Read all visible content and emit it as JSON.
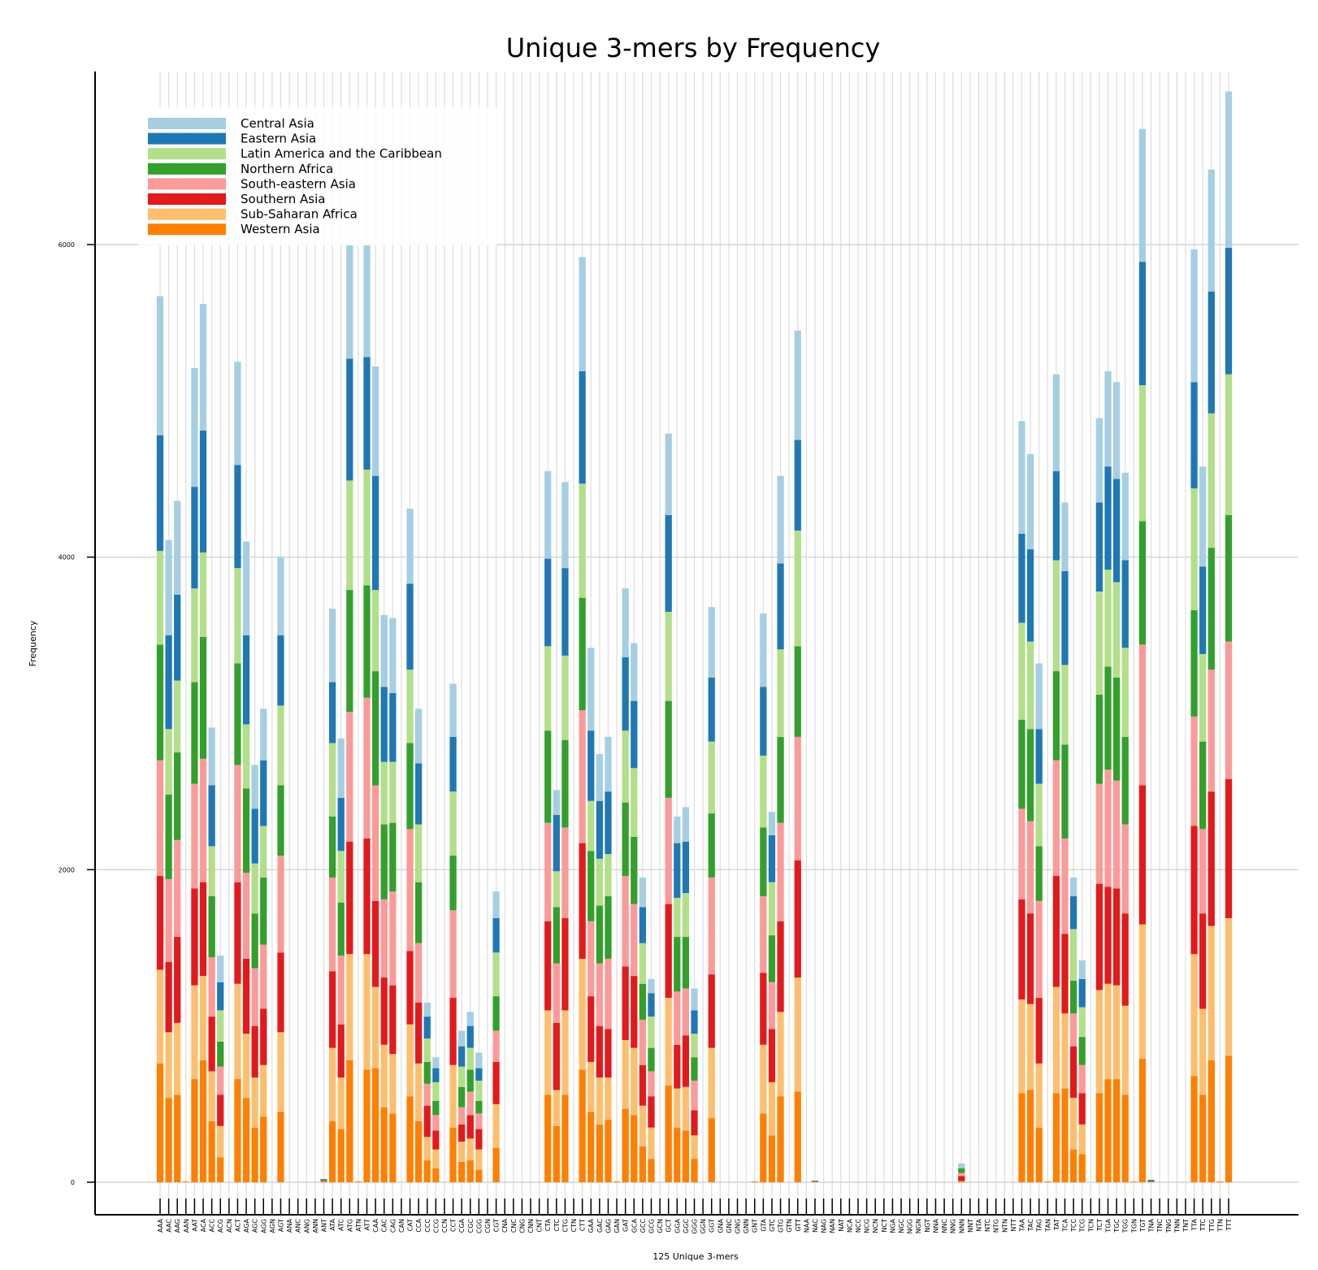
{
  "chart_data": {
    "type": "bar",
    "stacked": true,
    "title": "Unique 3-mers by Frequency",
    "xlabel": "125 Unique 3-mers",
    "ylabel": "Frequency",
    "yticks": [
      0,
      2000,
      4000,
      6000
    ],
    "ylim": [
      -200,
      7400
    ],
    "grid": true,
    "legend_position": "top-left",
    "colors": {
      "Central Asia": "#a6cee3",
      "Eastern Asia": "#1f78b4",
      "Latin America and the Caribbean": "#b2df8a",
      "Northern Africa": "#33a02c",
      "South-eastern Asia": "#fb9a99",
      "Southern Asia": "#e31a1c",
      "Sub-Saharan Africa": "#fdbf6f",
      "Western Asia": "#ff7f00"
    },
    "legend": [
      "Central Asia",
      "Eastern Asia",
      "Latin America and the Caribbean",
      "Northern Africa",
      "South-eastern Asia",
      "Southern Asia",
      "Sub-Saharan Africa",
      "Western Asia"
    ],
    "stack_order": [
      "Western Asia",
      "Sub-Saharan Africa",
      "Southern Asia",
      "South-eastern Asia",
      "Northern Africa",
      "Latin America and the Caribbean",
      "Eastern Asia",
      "Central Asia"
    ],
    "categories": [
      "AAA",
      "AAC",
      "AAG",
      "AAN",
      "AAT",
      "ACA",
      "ACC",
      "ACG",
      "ACN",
      "ACT",
      "AGA",
      "AGC",
      "AGG",
      "AGN",
      "AGT",
      "ANA",
      "ANC",
      "ANG",
      "ANN",
      "ANT",
      "ATA",
      "ATC",
      "ATG",
      "ATN",
      "ATT",
      "CAA",
      "CAC",
      "CAG",
      "CAN",
      "CAT",
      "CCA",
      "CCC",
      "CCG",
      "CCN",
      "CCT",
      "CGA",
      "CGC",
      "CGG",
      "CGN",
      "CGT",
      "CNA",
      "CNC",
      "CNG",
      "CNN",
      "CNT",
      "CTA",
      "CTC",
      "CTG",
      "CTN",
      "CTT",
      "GAA",
      "GAC",
      "GAG",
      "GAN",
      "GAT",
      "GCA",
      "GCC",
      "GCG",
      "GCN",
      "GCT",
      "GGA",
      "GGC",
      "GGG",
      "GGN",
      "GGT",
      "GNA",
      "GNC",
      "GNG",
      "GNN",
      "GNT",
      "GTA",
      "GTC",
      "GTG",
      "GTN",
      "GTT",
      "NAA",
      "NAC",
      "NAG",
      "NAN",
      "NAT",
      "NCA",
      "NCC",
      "NCG",
      "NCN",
      "NCT",
      "NGA",
      "NGC",
      "NGG",
      "NGN",
      "NGT",
      "NNA",
      "NNC",
      "NNG",
      "NNN",
      "NNT",
      "NTA",
      "NTC",
      "NTG",
      "NTN",
      "NTT",
      "TAA",
      "TAC",
      "TAG",
      "TAN",
      "TAT",
      "TCA",
      "TCC",
      "TCG",
      "TCN",
      "TCT",
      "TGA",
      "TGC",
      "TGG",
      "TGN",
      "TGT",
      "TNA",
      "TNC",
      "TNG",
      "TNN",
      "TNT",
      "TTA",
      "TTC",
      "TTG",
      "TTN",
      "TTT"
    ],
    "series": [
      {
        "name": "Western Asia",
        "values": [
          760,
          540,
          560,
          5,
          660,
          780,
          390,
          160,
          0,
          660,
          540,
          350,
          420,
          0,
          450,
          0,
          0,
          0,
          0,
          10,
          390,
          340,
          780,
          5,
          720,
          730,
          480,
          440,
          0,
          550,
          390,
          140,
          90,
          0,
          350,
          130,
          140,
          80,
          0,
          220,
          0,
          0,
          0,
          0,
          0,
          560,
          360,
          560,
          0,
          720,
          450,
          370,
          400,
          5,
          470,
          430,
          230,
          150,
          0,
          620,
          350,
          330,
          150,
          0,
          410,
          0,
          0,
          0,
          0,
          5,
          440,
          300,
          550,
          0,
          580,
          0,
          5,
          0,
          0,
          0,
          0,
          0,
          0,
          0,
          0,
          0,
          0,
          0,
          0,
          0,
          0,
          0,
          0,
          10,
          0,
          0,
          0,
          0,
          0,
          0,
          570,
          590,
          350,
          5,
          570,
          600,
          210,
          180,
          0,
          570,
          660,
          660,
          560,
          5,
          790,
          5,
          0,
          0,
          0,
          0,
          680,
          560,
          780,
          5,
          810
        ]
      },
      {
        "name": "Sub-Saharan Africa",
        "values": [
          600,
          420,
          460,
          0,
          600,
          540,
          320,
          200,
          0,
          610,
          410,
          320,
          330,
          0,
          510,
          0,
          0,
          0,
          0,
          0,
          470,
          330,
          680,
          0,
          740,
          520,
          400,
          380,
          0,
          460,
          370,
          150,
          120,
          0,
          400,
          130,
          140,
          130,
          0,
          280,
          0,
          0,
          0,
          0,
          0,
          540,
          230,
          540,
          0,
          710,
          320,
          300,
          270,
          0,
          440,
          430,
          260,
          200,
          0,
          560,
          250,
          280,
          150,
          0,
          450,
          0,
          0,
          0,
          0,
          0,
          440,
          340,
          540,
          0,
          730,
          0,
          0,
          0,
          0,
          0,
          0,
          0,
          0,
          0,
          0,
          0,
          0,
          0,
          0,
          0,
          0,
          0,
          0,
          0,
          0,
          0,
          0,
          0,
          0,
          0,
          600,
          550,
          410,
          0,
          680,
          480,
          330,
          190,
          0,
          660,
          610,
          600,
          570,
          0,
          860,
          0,
          0,
          0,
          0,
          0,
          780,
          550,
          860,
          0,
          880
        ]
      },
      {
        "name": "Southern Asia",
        "values": [
          600,
          450,
          550,
          0,
          620,
          600,
          350,
          200,
          0,
          650,
          480,
          330,
          360,
          0,
          510,
          0,
          0,
          0,
          0,
          0,
          490,
          340,
          720,
          0,
          740,
          550,
          430,
          440,
          0,
          470,
          390,
          200,
          120,
          0,
          430,
          110,
          150,
          130,
          0,
          270,
          0,
          0,
          0,
          0,
          0,
          570,
          430,
          590,
          0,
          740,
          420,
          330,
          310,
          0,
          470,
          460,
          260,
          200,
          0,
          600,
          280,
          330,
          160,
          0,
          470,
          0,
          0,
          0,
          0,
          0,
          460,
          340,
          580,
          0,
          750,
          0,
          0,
          0,
          0,
          0,
          0,
          0,
          0,
          0,
          0,
          0,
          0,
          0,
          0,
          0,
          0,
          0,
          0,
          30,
          0,
          0,
          0,
          0,
          0,
          0,
          640,
          580,
          420,
          0,
          710,
          510,
          330,
          200,
          0,
          680,
          620,
          620,
          590,
          0,
          890,
          0,
          0,
          0,
          0,
          0,
          820,
          610,
          860,
          0,
          890
        ]
      },
      {
        "name": "South-eastern Asia",
        "values": [
          740,
          530,
          620,
          0,
          670,
          790,
          380,
          180,
          0,
          750,
          550,
          370,
          410,
          0,
          620,
          0,
          0,
          0,
          0,
          0,
          600,
          440,
          830,
          0,
          900,
          740,
          500,
          600,
          0,
          780,
          380,
          140,
          100,
          0,
          560,
          110,
          150,
          100,
          0,
          200,
          0,
          0,
          0,
          0,
          0,
          630,
          380,
          580,
          0,
          850,
          480,
          400,
          450,
          0,
          580,
          460,
          290,
          160,
          0,
          680,
          340,
          300,
          190,
          0,
          620,
          0,
          0,
          0,
          0,
          0,
          490,
          300,
          630,
          0,
          790,
          0,
          0,
          0,
          0,
          0,
          0,
          0,
          0,
          0,
          0,
          0,
          0,
          0,
          0,
          0,
          0,
          0,
          0,
          20,
          0,
          0,
          0,
          0,
          0,
          0,
          580,
          590,
          620,
          0,
          740,
          610,
          210,
          180,
          0,
          640,
          750,
          690,
          570,
          0,
          900,
          0,
          0,
          0,
          0,
          0,
          700,
          540,
          780,
          0,
          880
        ]
      },
      {
        "name": "Northern Africa",
        "values": [
          740,
          540,
          560,
          0,
          650,
          780,
          390,
          160,
          0,
          650,
          540,
          350,
          430,
          0,
          450,
          0,
          0,
          0,
          0,
          0,
          390,
          340,
          780,
          0,
          720,
          730,
          480,
          440,
          0,
          550,
          390,
          140,
          90,
          0,
          350,
          130,
          140,
          80,
          0,
          220,
          0,
          0,
          0,
          0,
          0,
          590,
          360,
          560,
          0,
          720,
          450,
          370,
          400,
          0,
          470,
          430,
          230,
          150,
          0,
          620,
          350,
          330,
          150,
          0,
          410,
          0,
          0,
          0,
          0,
          0,
          440,
          300,
          550,
          0,
          580,
          0,
          0,
          0,
          0,
          0,
          0,
          0,
          0,
          0,
          0,
          0,
          0,
          0,
          0,
          0,
          0,
          0,
          0,
          30,
          0,
          0,
          0,
          0,
          0,
          0,
          570,
          590,
          350,
          0,
          570,
          600,
          210,
          180,
          0,
          570,
          660,
          660,
          560,
          0,
          790,
          0,
          0,
          0,
          0,
          0,
          680,
          560,
          780,
          0,
          810
        ]
      },
      {
        "name": "Latin America and the Caribbean",
        "values": [
          600,
          420,
          460,
          0,
          600,
          540,
          320,
          200,
          0,
          610,
          410,
          320,
          330,
          0,
          510,
          0,
          0,
          0,
          0,
          0,
          470,
          330,
          700,
          0,
          740,
          520,
          400,
          390,
          0,
          470,
          370,
          150,
          120,
          0,
          410,
          130,
          140,
          130,
          0,
          280,
          0,
          0,
          0,
          0,
          0,
          540,
          230,
          540,
          0,
          730,
          320,
          300,
          270,
          0,
          460,
          440,
          260,
          200,
          0,
          570,
          250,
          280,
          150,
          0,
          460,
          0,
          0,
          0,
          0,
          0,
          460,
          340,
          560,
          0,
          740,
          0,
          0,
          0,
          0,
          0,
          0,
          0,
          0,
          0,
          0,
          0,
          0,
          0,
          0,
          0,
          0,
          0,
          0,
          0,
          0,
          0,
          0,
          0,
          0,
          0,
          620,
          560,
          400,
          0,
          710,
          510,
          330,
          190,
          0,
          660,
          620,
          610,
          570,
          0,
          870,
          0,
          0,
          0,
          0,
          0,
          780,
          560,
          860,
          0,
          900
        ]
      },
      {
        "name": "Eastern Asia",
        "values": [
          740,
          600,
          550,
          0,
          650,
          780,
          390,
          180,
          0,
          660,
          570,
          350,
          420,
          0,
          450,
          0,
          0,
          0,
          0,
          10,
          390,
          340,
          780,
          0,
          720,
          730,
          480,
          440,
          0,
          550,
          390,
          140,
          90,
          0,
          350,
          130,
          140,
          80,
          0,
          220,
          0,
          0,
          0,
          0,
          0,
          560,
          360,
          560,
          0,
          720,
          450,
          370,
          400,
          0,
          470,
          430,
          230,
          150,
          0,
          620,
          350,
          330,
          150,
          0,
          410,
          0,
          0,
          0,
          0,
          0,
          440,
          300,
          550,
          0,
          580,
          0,
          5,
          0,
          0,
          0,
          0,
          0,
          0,
          0,
          0,
          0,
          0,
          0,
          0,
          0,
          0,
          0,
          0,
          0,
          0,
          0,
          0,
          0,
          0,
          0,
          570,
          590,
          350,
          0,
          570,
          600,
          210,
          180,
          0,
          570,
          660,
          660,
          560,
          0,
          790,
          10,
          0,
          0,
          0,
          0,
          680,
          560,
          780,
          0,
          810
        ]
      },
      {
        "name": "Central Asia",
        "values": [
          890,
          610,
          600,
          0,
          760,
          810,
          370,
          170,
          0,
          660,
          600,
          280,
          330,
          0,
          500,
          0,
          0,
          0,
          0,
          0,
          470,
          380,
          730,
          0,
          730,
          700,
          460,
          480,
          0,
          480,
          350,
          90,
          70,
          0,
          340,
          100,
          90,
          100,
          0,
          170,
          0,
          0,
          0,
          0,
          0,
          560,
          160,
          550,
          0,
          730,
          530,
          300,
          350,
          0,
          440,
          370,
          190,
          90,
          0,
          520,
          170,
          220,
          140,
          0,
          450,
          0,
          0,
          0,
          0,
          0,
          470,
          150,
          560,
          0,
          700,
          0,
          0,
          0,
          0,
          0,
          0,
          0,
          0,
          0,
          0,
          0,
          0,
          0,
          0,
          0,
          0,
          0,
          0,
          30,
          0,
          0,
          0,
          0,
          0,
          0,
          720,
          610,
          420,
          0,
          620,
          440,
          120,
          120,
          0,
          540,
          610,
          620,
          560,
          0,
          850,
          0,
          0,
          0,
          0,
          0,
          850,
          640,
          780,
          0,
          1000
        ]
      }
    ]
  }
}
